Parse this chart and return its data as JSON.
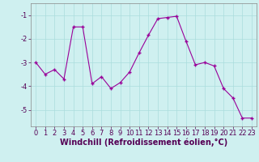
{
  "x": [
    0,
    1,
    2,
    3,
    4,
    5,
    6,
    7,
    8,
    9,
    10,
    11,
    12,
    13,
    14,
    15,
    16,
    17,
    18,
    19,
    20,
    21,
    22,
    23
  ],
  "y": [
    -3.0,
    -3.5,
    -3.3,
    -3.7,
    -1.5,
    -1.5,
    -3.9,
    -3.6,
    -4.1,
    -3.85,
    -3.4,
    -2.6,
    -1.85,
    -1.15,
    -1.1,
    -1.05,
    -2.1,
    -3.1,
    -3.0,
    -3.15,
    -4.1,
    -4.5,
    -5.35,
    -5.35
  ],
  "line_color": "#990099",
  "marker": "+",
  "marker_size": 3,
  "marker_lw": 1.0,
  "bg_color": "#cff0f0",
  "grid_color": "#aadddd",
  "xlabel": "Windchill (Refroidissement éolien,°C)",
  "xlabel_fontsize": 7,
  "tick_fontsize": 6,
  "xlim": [
    -0.5,
    23.5
  ],
  "ylim": [
    -5.7,
    -0.5
  ],
  "yticks": [
    -5,
    -4,
    -3,
    -2,
    -1
  ],
  "xticks": [
    0,
    1,
    2,
    3,
    4,
    5,
    6,
    7,
    8,
    9,
    10,
    11,
    12,
    13,
    14,
    15,
    16,
    17,
    18,
    19,
    20,
    21,
    22,
    23
  ]
}
